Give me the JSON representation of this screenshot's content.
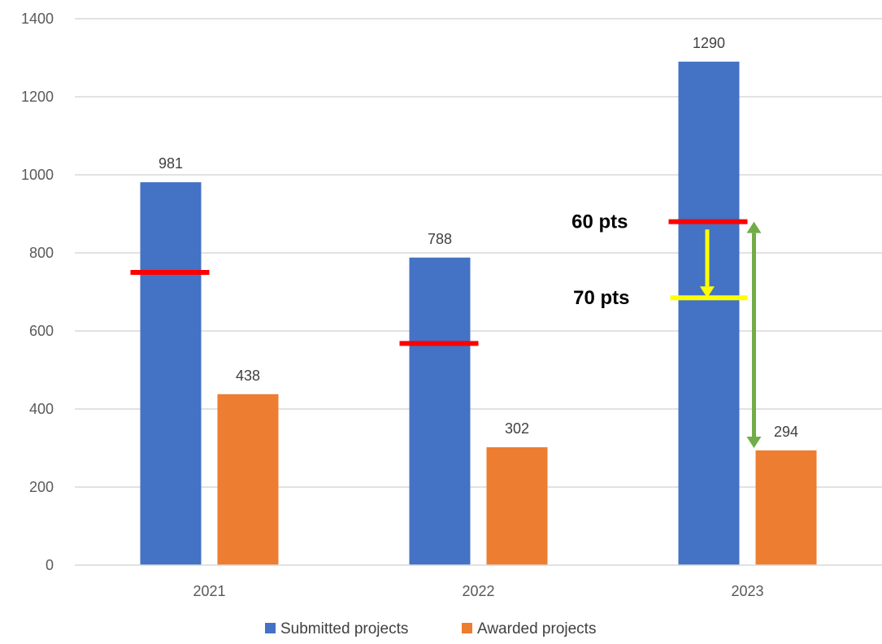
{
  "chart_data": {
    "type": "bar",
    "categories": [
      "2021",
      "2022",
      "2023"
    ],
    "series": [
      {
        "name": "Submitted projects",
        "values": [
          981,
          788,
          1290
        ],
        "color": "#4472C4"
      },
      {
        "name": "Awarded projects",
        "values": [
          438,
          302,
          294
        ],
        "color": "#ED7D31"
      }
    ],
    "title": "",
    "xlabel": "",
    "ylabel": "",
    "ylim": [
      0,
      1400
    ],
    "yticks": [
      0,
      200,
      400,
      600,
      800,
      1000,
      1200,
      1400
    ],
    "y_tick_labels": [
      "0",
      "200",
      "400",
      "600",
      "800",
      "1000",
      "1200",
      "1400"
    ],
    "data_labels": [
      "981",
      "788",
      "1290",
      "438",
      "302",
      "294"
    ],
    "grid": true,
    "legend_position": "bottom",
    "annotations": {
      "threshold_lines": [
        {
          "category": "2021",
          "value": 750,
          "color": "#FF0000"
        },
        {
          "category": "2022",
          "value": 568,
          "color": "#FF0000"
        },
        {
          "category": "2023",
          "value": 880,
          "color": "#FF0000",
          "label": "60 pts"
        },
        {
          "category": "2023",
          "value": 685,
          "color": "#FFFF00",
          "label": "70 pts"
        }
      ],
      "arrows": [
        {
          "category": "2023",
          "from": 860,
          "to": 685,
          "color": "#FFFF00",
          "style": "single"
        },
        {
          "category": "2023",
          "from": 880,
          "to": 300,
          "color": "#70AD47",
          "style": "double"
        }
      ]
    }
  }
}
